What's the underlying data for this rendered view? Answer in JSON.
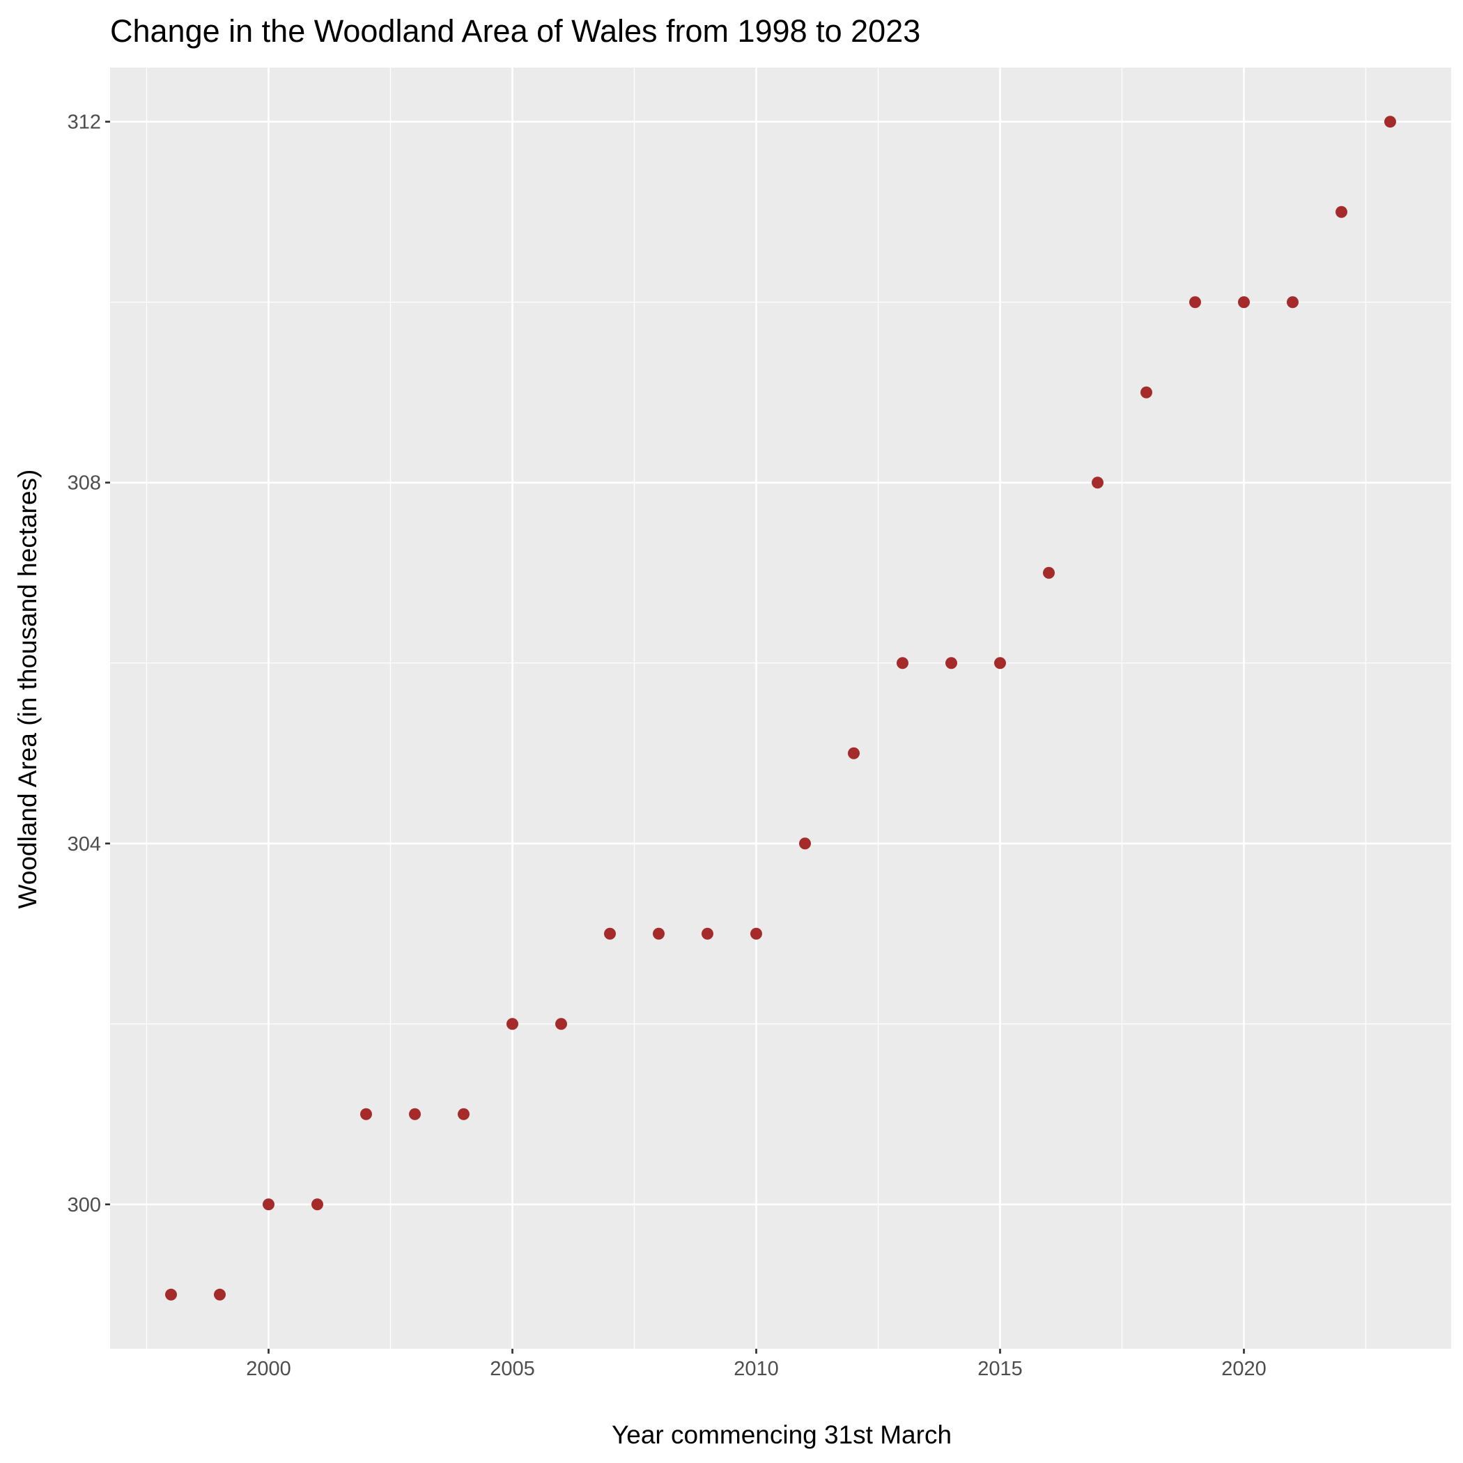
{
  "chart_data": {
    "type": "scatter",
    "title": "Change in the Woodland Area of Wales from 1998 to 2023",
    "xlabel": "Year commencing 31st March",
    "ylabel": "Woodland Area (in thousand hectares)",
    "x": [
      1998,
      1999,
      2000,
      2001,
      2002,
      2003,
      2004,
      2005,
      2006,
      2007,
      2008,
      2009,
      2010,
      2011,
      2012,
      2013,
      2014,
      2015,
      2016,
      2017,
      2018,
      2019,
      2020,
      2021,
      2022,
      2023
    ],
    "y": [
      299,
      299,
      300,
      300,
      301,
      301,
      301,
      302,
      302,
      303,
      303,
      303,
      303,
      304,
      305,
      306,
      306,
      306,
      307,
      308,
      309,
      310,
      310,
      310,
      311,
      312
    ],
    "xticks": [
      "2000",
      "2005",
      "2010",
      "2015",
      "2020"
    ],
    "yticks": [
      "300",
      "304",
      "308",
      "312"
    ],
    "xlim": [
      1996.75,
      2024.25
    ],
    "ylim": [
      298.4,
      312.6
    ],
    "grid": true,
    "colors": {
      "point": "#A52A2A",
      "panel": "#EBEBEB",
      "grid": "#FFFFFF"
    }
  }
}
